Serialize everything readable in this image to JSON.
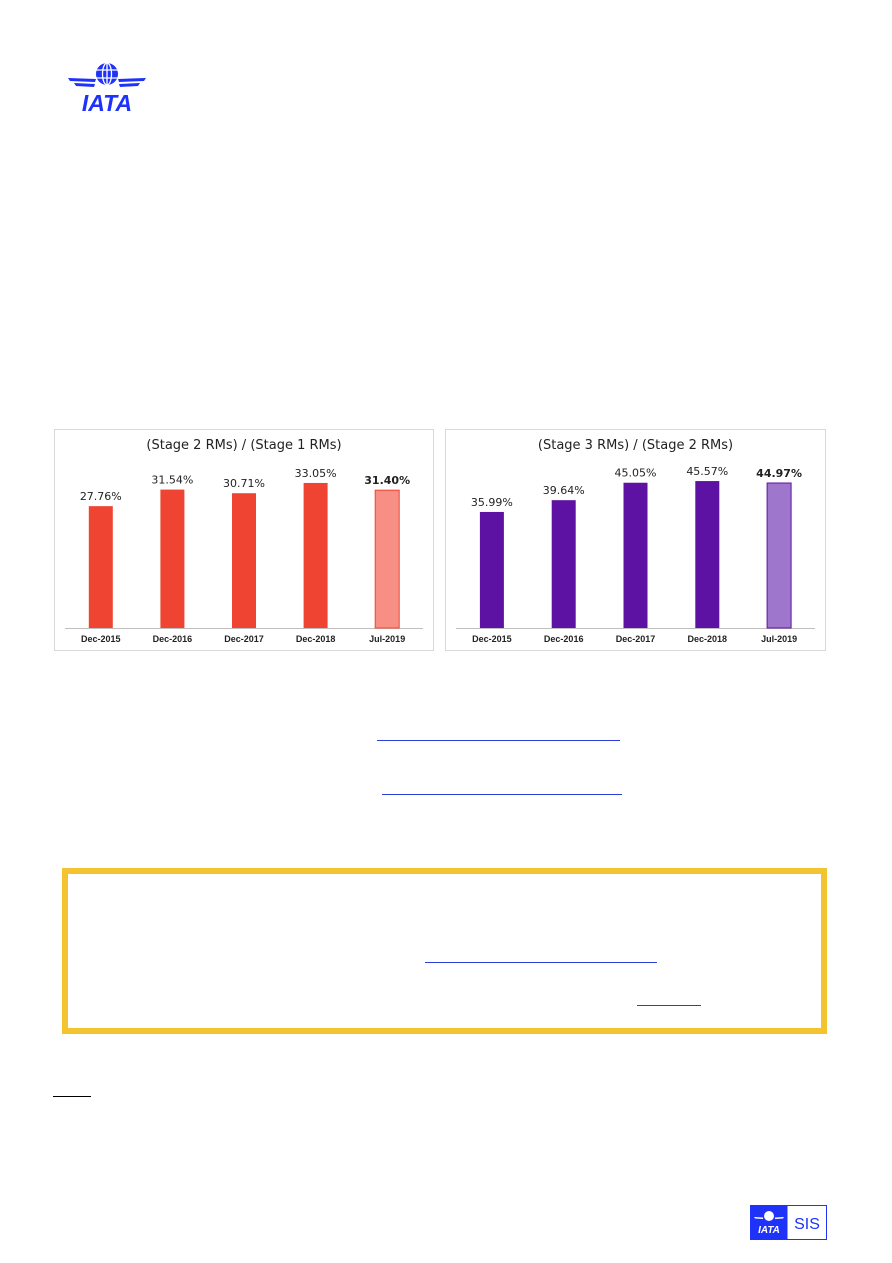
{
  "header": {
    "logo_text": "IATA",
    "logo_color": "#1e32fa"
  },
  "footer": {
    "logo_text": "IATA",
    "sis_label": "SIS"
  },
  "note_label": "",
  "chart_data": [
    {
      "type": "bar",
      "title": "(Stage 2 RMs) / (Stage 1 RMs)",
      "categories": [
        "Dec-2015",
        "Dec-2016",
        "Dec-2017",
        "Dec-2018",
        "Jul-2019"
      ],
      "values": [
        27.76,
        31.54,
        30.71,
        33.05,
        31.4
      ],
      "labels": [
        "27.76%",
        "31.54%",
        "30.71%",
        "33.05%",
        "31.40%"
      ],
      "highlight_last": true,
      "color": "#f04433",
      "highlight_color": "#f78f85",
      "ylim": [
        0,
        36
      ],
      "grid": false
    },
    {
      "type": "bar",
      "title": "(Stage 3 RMs) / (Stage 2 RMs)",
      "categories": [
        "Dec-2015",
        "Dec-2016",
        "Dec-2017",
        "Dec-2018",
        "Jul-2019"
      ],
      "values": [
        35.99,
        39.64,
        45.05,
        45.57,
        44.97
      ],
      "labels": [
        "35.99%",
        "39.64%",
        "45.05%",
        "45.57%",
        "44.97%"
      ],
      "highlight_last": true,
      "color": "#5e12a3",
      "highlight_color": "#9e77cc",
      "ylim": [
        0,
        49
      ],
      "grid": false
    }
  ]
}
